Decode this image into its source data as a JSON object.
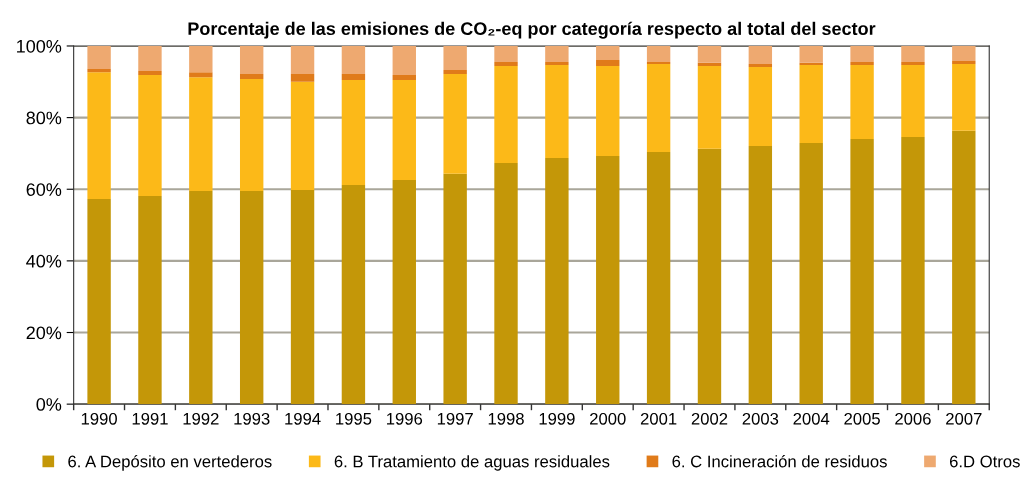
{
  "chart_data": {
    "type": "bar",
    "stacked": true,
    "title": "Porcentaje de las emisiones de CO₂-eq por categoría respecto al total del sector",
    "categories": [
      "1990",
      "1991",
      "1992",
      "1993",
      "1994",
      "1995",
      "1996",
      "1997",
      "1998",
      "1999",
      "2000",
      "2001",
      "2002",
      "2003",
      "2004",
      "2005",
      "2006",
      "2007"
    ],
    "series": [
      {
        "name": "6. A Depósito en vertederos",
        "color": "#c49708",
        "values": [
          57.3,
          58.1,
          59.5,
          59.5,
          59.8,
          61.2,
          62.6,
          64.3,
          67.3,
          68.7,
          69.3,
          70.4,
          71.3,
          72.1,
          72.9,
          74.0,
          74.6,
          76.3
        ]
      },
      {
        "name": "6. B Tratamiento de aguas residuales",
        "color": "#fcb918",
        "values": [
          35.4,
          33.8,
          31.8,
          31.3,
          30.2,
          29.3,
          27.9,
          27.9,
          27.1,
          26.0,
          25.1,
          24.6,
          23.1,
          22.0,
          21.8,
          20.7,
          20.1,
          18.7
        ]
      },
      {
        "name": "6. C Incineración de residuos",
        "color": "#e07b1a",
        "values": [
          0.9,
          1.1,
          1.4,
          1.4,
          2.2,
          1.7,
          1.4,
          1.1,
          1.1,
          0.8,
          1.7,
          0.5,
          0.9,
          0.9,
          0.6,
          0.8,
          0.8,
          0.8
        ]
      },
      {
        "name": "6.D Otros",
        "color": "#eea970",
        "values": [
          6.4,
          7.0,
          7.3,
          7.8,
          7.8,
          7.8,
          8.1,
          6.7,
          4.5,
          4.5,
          3.9,
          4.5,
          4.7,
          5.0,
          4.7,
          4.5,
          4.5,
          4.2
        ]
      }
    ],
    "ylim": [
      0,
      100
    ],
    "yticks": [
      {
        "value": 0,
        "label": "0%"
      },
      {
        "value": 20,
        "label": "20%"
      },
      {
        "value": 40,
        "label": "40%"
      },
      {
        "value": 60,
        "label": "60%"
      },
      {
        "value": 80,
        "label": "80%"
      },
      {
        "value": 100,
        "label": "100%"
      }
    ],
    "grid": "y",
    "legend": "bottom"
  }
}
